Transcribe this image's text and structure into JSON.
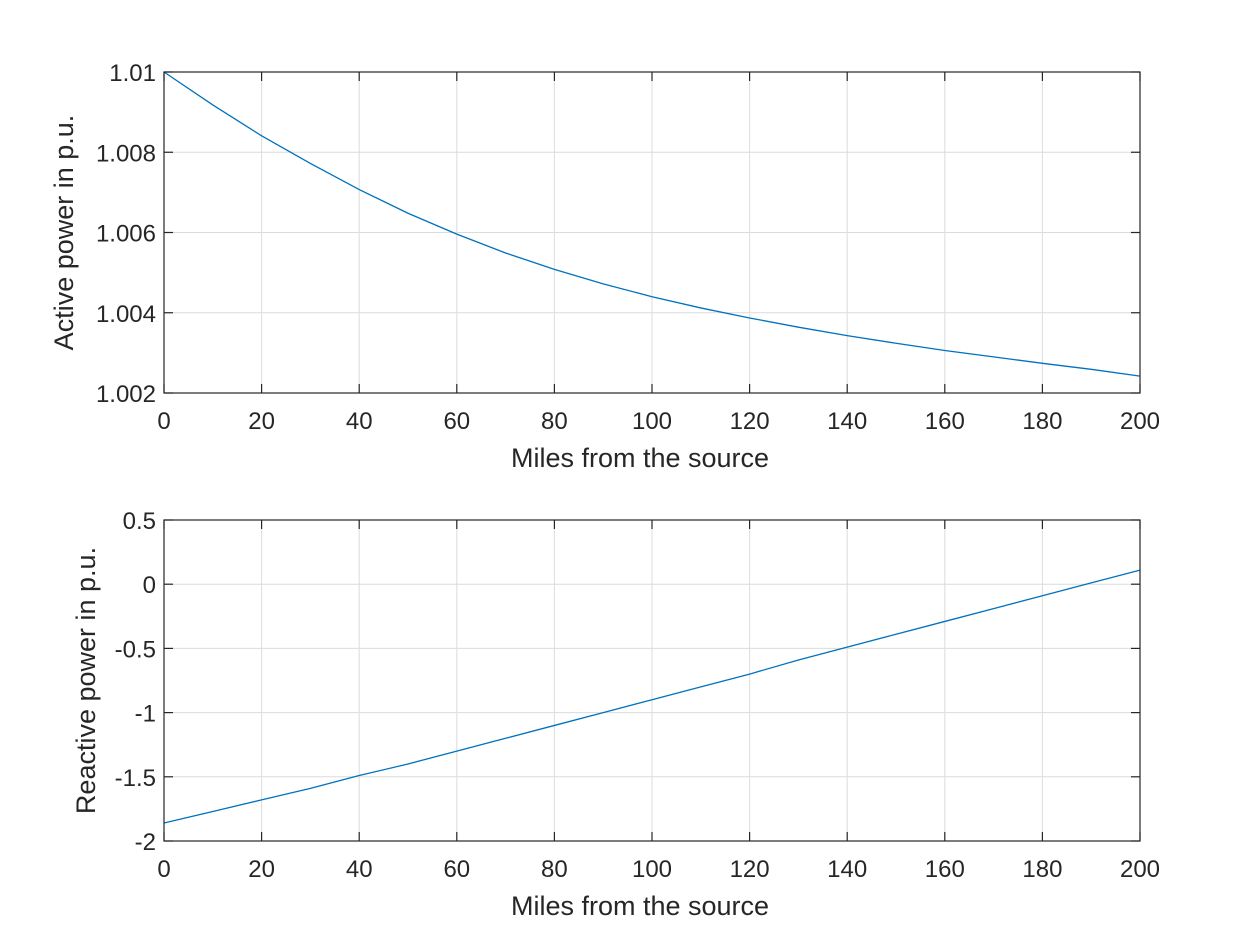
{
  "chart_data": [
    {
      "type": "line",
      "xlabel": "Miles from the source",
      "ylabel": "Active power in p.u.",
      "xlim": [
        0,
        200
      ],
      "ylim": [
        1.002,
        1.01
      ],
      "xticks": [
        0,
        20,
        40,
        60,
        80,
        100,
        120,
        140,
        160,
        180,
        200
      ],
      "xtick_labels": [
        "0",
        "20",
        "40",
        "60",
        "80",
        "100",
        "120",
        "140",
        "160",
        "180",
        "200"
      ],
      "yticks": [
        1.002,
        1.004,
        1.006,
        1.008,
        1.01
      ],
      "ytick_labels": [
        "1.002",
        "1.004",
        "1.006",
        "1.008",
        "1.01"
      ],
      "grid": true,
      "series": [
        {
          "color": "#0072bd",
          "x": [
            0,
            10,
            20,
            30,
            40,
            50,
            60,
            70,
            80,
            90,
            100,
            110,
            120,
            130,
            140,
            150,
            160,
            170,
            180,
            190,
            200
          ],
          "y": [
            1.01,
            1.00918,
            1.00841,
            1.00772,
            1.00707,
            1.00648,
            1.00596,
            1.00549,
            1.00508,
            1.00472,
            1.0044,
            1.00412,
            1.00387,
            1.00364,
            1.00343,
            1.00324,
            1.00306,
            1.0029,
            1.00274,
            1.00259,
            1.00242
          ]
        }
      ]
    },
    {
      "type": "line",
      "xlabel": "Miles from the source",
      "ylabel": "Reactive power in p.u.",
      "xlim": [
        0,
        200
      ],
      "ylim": [
        -2,
        0.5
      ],
      "xticks": [
        0,
        20,
        40,
        60,
        80,
        100,
        120,
        140,
        160,
        180,
        200
      ],
      "xtick_labels": [
        "0",
        "20",
        "40",
        "60",
        "80",
        "100",
        "120",
        "140",
        "160",
        "180",
        "200"
      ],
      "yticks": [
        -2,
        -1.5,
        -1,
        -0.5,
        0,
        0.5
      ],
      "ytick_labels": [
        "-2",
        "-1.5",
        "-1",
        "-0.5",
        "0",
        "0.5"
      ],
      "grid": true,
      "series": [
        {
          "color": "#0072bd",
          "x": [
            0,
            10,
            20,
            30,
            40,
            50,
            60,
            70,
            80,
            90,
            100,
            110,
            120,
            130,
            140,
            150,
            160,
            170,
            180,
            190,
            200
          ],
          "y": [
            -1.86,
            -1.77,
            -1.68,
            -1.59,
            -1.49,
            -1.4,
            -1.3,
            -1.2,
            -1.1,
            -1.0,
            -0.9,
            -0.8,
            -0.7,
            -0.59,
            -0.49,
            -0.39,
            -0.29,
            -0.19,
            -0.09,
            0.01,
            0.11
          ]
        }
      ]
    }
  ]
}
